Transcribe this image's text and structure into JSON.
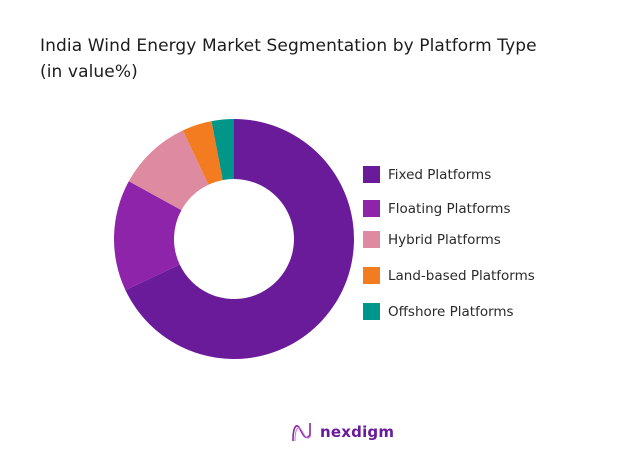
{
  "title_line1": "India Wind Energy Market Segmentation by Platform Type",
  "title_line2": "(in value%)",
  "chart_data": {
    "type": "pie",
    "variant": "donut",
    "title": "India Wind Energy Market Segmentation by Platform Type (in value%)",
    "categories": [
      "Fixed Platforms",
      "Floating Platforms",
      "Hybrid Platforms",
      "Land-based Platforms",
      "Offshore Platforms"
    ],
    "values": [
      68,
      15,
      10,
      4,
      3
    ],
    "colors": [
      "#6a1b9a",
      "#8e24aa",
      "#de8aa0",
      "#f47c20",
      "#00968a"
    ],
    "legend_position": "right",
    "data_labels": false
  },
  "legend": [
    {
      "label": "Fixed Platforms",
      "color": "#6a1b9a"
    },
    {
      "label": "Floating Platforms",
      "color": "#8e24aa"
    },
    {
      "label": "Hybrid Platforms",
      "color": "#de8aa0"
    },
    {
      "label": "Land-based Platforms",
      "color": "#f47c20"
    },
    {
      "label": "Offshore Platforms",
      "color": "#00968a"
    }
  ],
  "brand": {
    "name": "nexdigm"
  }
}
